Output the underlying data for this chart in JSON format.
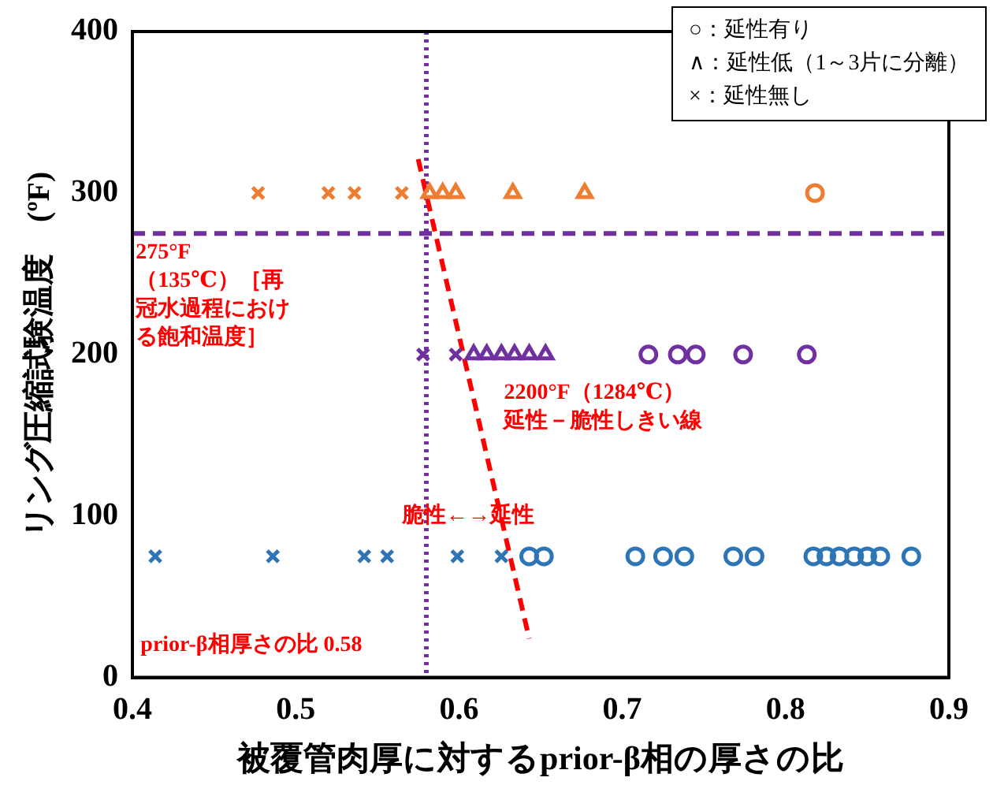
{
  "chart_data": {
    "type": "scatter",
    "xlabel": "被覆管肉厚に対するprior-β相の厚さの比",
    "ylabel": "リング圧縮試験温度　(ºF)",
    "xlim": [
      0.4,
      0.9
    ],
    "xticks": [
      {
        "value": 0.4,
        "label": "0.4"
      },
      {
        "value": 0.5,
        "label": "0.5"
      },
      {
        "value": 0.6,
        "label": "0.6"
      },
      {
        "value": 0.7,
        "label": "0.7"
      },
      {
        "value": 0.8,
        "label": "0.8"
      },
      {
        "value": 0.9,
        "label": "0.9"
      }
    ],
    "ylim": [
      0,
      400
    ],
    "yticks": [
      0,
      100,
      200,
      300,
      400
    ],
    "grid": false,
    "series": [
      {
        "marker": "circle",
        "x": [
          0.818,
          0.716,
          0.734,
          0.745,
          0.774,
          0.813,
          0.643,
          0.652,
          0.708,
          0.725,
          0.738,
          0.768,
          0.781,
          0.817,
          0.825,
          0.833,
          0.842,
          0.85,
          0.858,
          0.877
        ],
        "values": [
          300,
          200,
          200,
          200,
          200,
          200,
          75,
          75,
          75,
          75,
          75,
          75,
          75,
          75,
          75,
          75,
          75,
          75,
          75,
          75
        ],
        "colors": [
          "#ed7d31",
          "#7030a0",
          "#7030a0",
          "#7030a0",
          "#7030a0",
          "#7030a0",
          "#2e75b6",
          "#2e75b6",
          "#2e75b6",
          "#2e75b6",
          "#2e75b6",
          "#2e75b6",
          "#2e75b6",
          "#2e75b6",
          "#2e75b6",
          "#2e75b6",
          "#2e75b6",
          "#2e75b6",
          "#2e75b6",
          "#2e75b6"
        ]
      },
      {
        "marker": "triangle",
        "x": [
          0.582,
          0.59,
          0.598,
          0.633,
          0.677,
          0.609,
          0.617,
          0.626,
          0.634,
          0.643,
          0.653
        ],
        "values": [
          300,
          300,
          300,
          300,
          300,
          200,
          200,
          200,
          200,
          200,
          200
        ],
        "colors": [
          "#ed7d31",
          "#ed7d31",
          "#ed7d31",
          "#ed7d31",
          "#ed7d31",
          "#7030a0",
          "#7030a0",
          "#7030a0",
          "#7030a0",
          "#7030a0",
          "#7030a0"
        ]
      },
      {
        "marker": "cross",
        "x": [
          0.477,
          0.52,
          0.536,
          0.565,
          0.578,
          0.598,
          0.414,
          0.486,
          0.542,
          0.556,
          0.599,
          0.626
        ],
        "values": [
          300,
          300,
          300,
          300,
          200,
          200,
          75,
          75,
          75,
          75,
          75,
          75
        ],
        "colors": [
          "#ed7d31",
          "#ed7d31",
          "#ed7d31",
          "#ed7d31",
          "#7030a0",
          "#7030a0",
          "#2e75b6",
          "#2e75b6",
          "#2e75b6",
          "#2e75b6",
          "#2e75b6",
          "#2e75b6"
        ]
      },
      {
        "type": "line",
        "line_style": "dashed",
        "color": "#ff0000",
        "x": [
          0.575,
          0.643
        ],
        "values": [
          321,
          24
        ]
      }
    ],
    "ref_lines": [
      {
        "axis": "x",
        "value": 0.58,
        "color": "#7030a0",
        "line_style": "dotted"
      },
      {
        "axis": "y",
        "value": 275,
        "color": "#7030a0",
        "line_style": "dashed"
      }
    ],
    "annotations": [
      {
        "text": "275°F（135℃）［再冠水過程における飽和温度］",
        "x": 0.402,
        "y": 275
      },
      "2200°F（1284℃）延性－脆性しきい線",
      "脆性←→延性",
      "prior-β相厚さの比 0.58",
      "○：延性有り",
      "∧：延性低（1～3片に分離）",
      "×：延性無し"
    ]
  }
}
